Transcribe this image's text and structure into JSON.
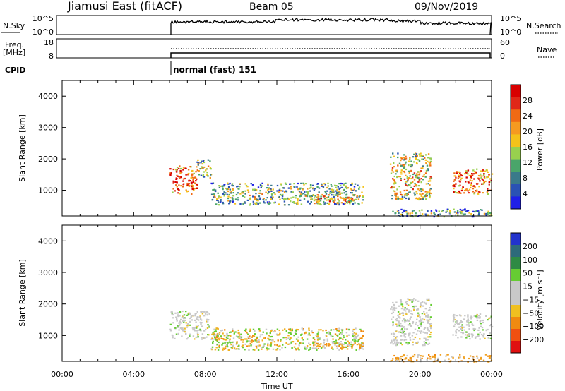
{
  "header": {
    "station": "Jiamusi East (fitACF)",
    "beam": "Beam 05",
    "date": "09/Nov/2019"
  },
  "strip_labels": {
    "nsky": "N.Sky",
    "nsky_ticks": [
      "10^5",
      "10^0"
    ],
    "nsearch": "N.Search",
    "nsearch_ticks": [
      "10^5",
      "10^0"
    ],
    "freq": "Freq.",
    "freq_unit": "[MHz]",
    "freq_ticks": [
      "18",
      "8"
    ],
    "nave": "Nave",
    "nave_ticks": [
      "60",
      "0"
    ],
    "cpid": "CPID",
    "cpid_value": "normal (fast) 151"
  },
  "chart_data": [
    {
      "type": "heatmap",
      "name": "power",
      "ylabel": "Slant Range [km]",
      "xlabel": "Time UT",
      "xlim_hours": [
        0,
        24
      ],
      "ylim_km": [
        180,
        4500
      ],
      "x_ticks": [
        "00:00",
        "04:00",
        "08:00",
        "12:00",
        "16:00",
        "20:00",
        "00:00"
      ],
      "y_ticks": [
        1000,
        2000,
        3000,
        4000
      ],
      "colorbar": {
        "label": "Power [dB]",
        "ticks": [
          "4",
          "8",
          "12",
          "16",
          "20",
          "24",
          "28"
        ],
        "colors": [
          "#1f1fe8",
          "#2a52b4",
          "#3a7a8a",
          "#4aa56a",
          "#98d04e",
          "#f4c21a",
          "#f59a20",
          "#f06a14",
          "#e02818",
          "#d80000"
        ]
      },
      "regions": [
        {
          "t": [
            6.0,
            7.5
          ],
          "r": [
            900,
            1800
          ],
          "level": 0.7
        },
        {
          "t": [
            7.5,
            8.3
          ],
          "r": [
            1400,
            2000
          ],
          "level": 0.35
        },
        {
          "t": [
            8.3,
            16.8
          ],
          "r": [
            550,
            1250
          ],
          "level": 0.3
        },
        {
          "t": [
            14.0,
            16.5
          ],
          "r": [
            600,
            900
          ],
          "level": 0.55
        },
        {
          "t": [
            18.3,
            20.6
          ],
          "r": [
            700,
            2200
          ],
          "level": 0.45
        },
        {
          "t": [
            21.8,
            24.0
          ],
          "r": [
            900,
            1700
          ],
          "level": 0.65
        },
        {
          "t": [
            18.3,
            24.0
          ],
          "r": [
            180,
            420
          ],
          "level": 0.2
        }
      ]
    },
    {
      "type": "heatmap",
      "name": "velocity",
      "ylabel": "Slant Range [km]",
      "xlabel": "Time UT",
      "xlim_hours": [
        0,
        24
      ],
      "ylim_km": [
        180,
        4500
      ],
      "x_ticks": [
        "00:00",
        "04:00",
        "08:00",
        "12:00",
        "16:00",
        "20:00",
        "00:00"
      ],
      "y_ticks": [
        1000,
        2000,
        3000,
        4000
      ],
      "colorbar": {
        "label": "Velocity [m s⁻¹]",
        "ticks": [
          "200",
          "100",
          "50",
          "15",
          "−15",
          "−50",
          "−100",
          "−200"
        ],
        "colors": [
          "#2233cc",
          "#2d6a7a",
          "#2e8a44",
          "#66cc33",
          "#c8c8c8",
          "#c8c8c8",
          "#f0c020",
          "#f08a10",
          "#f05010",
          "#e01010"
        ]
      },
      "regions": [
        {
          "t": [
            6.0,
            8.2
          ],
          "r": [
            900,
            1800
          ],
          "vel": "ground"
        },
        {
          "t": [
            8.3,
            16.8
          ],
          "r": [
            550,
            1250
          ],
          "vel": "mixed"
        },
        {
          "t": [
            14.0,
            16.8
          ],
          "r": [
            600,
            800
          ],
          "vel": "neg"
        },
        {
          "t": [
            18.3,
            20.6
          ],
          "r": [
            700,
            2200
          ],
          "vel": "ground"
        },
        {
          "t": [
            21.8,
            24.0
          ],
          "r": [
            900,
            1700
          ],
          "vel": "ground"
        },
        {
          "t": [
            18.3,
            24.0
          ],
          "r": [
            180,
            420
          ],
          "vel": "neg"
        }
      ]
    }
  ]
}
